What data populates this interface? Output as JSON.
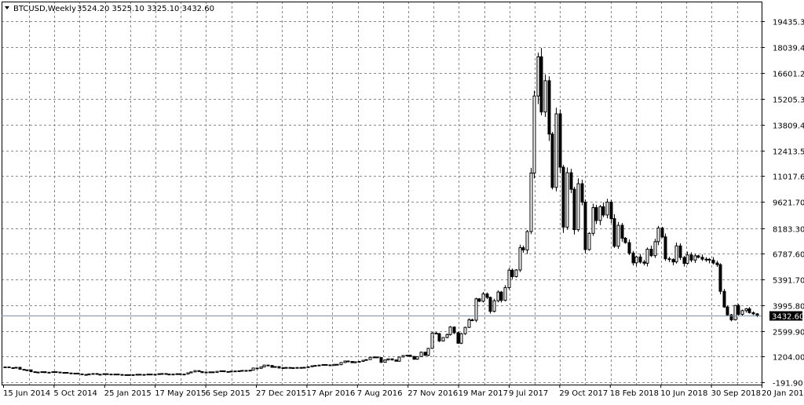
{
  "header": {
    "symbol": "BTCUSD,Weekly",
    "ohlc": "3524.20 3525.10 3325.10 3432.60"
  },
  "chart_data": {
    "type": "candlestick",
    "title": "BTCUSD,Weekly",
    "grid": true,
    "ylim": [
      -191.9,
      20100
    ],
    "y_ticks": [
      "19435.30",
      "18039.40",
      "16601.20",
      "15205.30",
      "13809.40",
      "12413.50",
      "11017.60",
      "9621.70",
      "8183.30",
      "6787.60",
      "5391.70",
      "3995.80",
      "2599.90",
      "1204.00",
      "-191.90"
    ],
    "y_tick_values": [
      19435.3,
      18039.4,
      16601.2,
      15205.3,
      13809.4,
      12413.5,
      11017.6,
      9621.7,
      8183.3,
      6787.6,
      5391.7,
      3995.8,
      2599.9,
      1204.0,
      -191.9
    ],
    "x_tick_labels": [
      "15 Jun 2014",
      "5 Oct 2014",
      "25 Jan 2015",
      "17 May 2015",
      "6 Sep 2015",
      "27 Dec 2015",
      "17 Apr 2016",
      "7 Aug 2016",
      "27 Nov 2016",
      "19 Mar 2017",
      "9 Jul 2017",
      "29 Oct 2017",
      "18 Feb 2018",
      "10 Jun 2018",
      "30 Sep 2018",
      "20 Jan 2019"
    ],
    "current_price": "3432.60",
    "price_line_color": "#7d92a8",
    "grid_color": "#8a8a8a",
    "candle_color": "#000000",
    "weekly_close": [
      640,
      600,
      580,
      620,
      510,
      470,
      480,
      380,
      360,
      340,
      380,
      330,
      350,
      380,
      360,
      330,
      340,
      310,
      280,
      300,
      260,
      230,
      210,
      260,
      280,
      240,
      230,
      270,
      250,
      240,
      250,
      230,
      220,
      210,
      220,
      210,
      240,
      230,
      230,
      250,
      240,
      230,
      270,
      280,
      240,
      250,
      230,
      270,
      230,
      250,
      320,
      370,
      440,
      390,
      330,
      360,
      370,
      340,
      400,
      430,
      380,
      390,
      410,
      420,
      430,
      450,
      450,
      460,
      580,
      560,
      640,
      740,
      720,
      620,
      660,
      580,
      600,
      610,
      570,
      600,
      610,
      600,
      620,
      650,
      700,
      720,
      740,
      770,
      750,
      720,
      780,
      760,
      880,
      960,
      940,
      870,
      920,
      940,
      1000,
      1040,
      1160,
      1180,
      1150,
      890,
      1020,
      1080,
      1020,
      950,
      1180,
      1260,
      1280,
      1210,
      1060,
      1200,
      1440,
      1270,
      1650,
      2480,
      2450,
      2050,
      2240,
      2400,
      2810,
      2500,
      1930,
      2450,
      2790,
      3200,
      3180,
      4340,
      4210,
      4610,
      4420,
      3660,
      4240,
      4710,
      4260,
      4950,
      5900,
      5550,
      5910,
      7120,
      7000,
      8000,
      11180,
      15370,
      17500,
      14500,
      16200,
      13300,
      10400,
      14400,
      11500,
      8240,
      11200,
      10300,
      8100,
      10600,
      9600,
      7020,
      7900,
      9300,
      8600,
      9350,
      8900,
      9600,
      8700,
      7200,
      8340,
      7640,
      7400,
      6830,
      6300,
      6620,
      6340,
      6280,
      7040,
      6690,
      7450,
      8190,
      7710,
      6520,
      6480,
      6350,
      7220,
      6590,
      6270,
      6730,
      6450,
      6680,
      6600,
      6500,
      6490,
      6450,
      6290,
      6200,
      4750,
      3900,
      3470,
      3200,
      3980,
      3500,
      3700,
      3800,
      3590,
      3525,
      3432.6
    ]
  }
}
